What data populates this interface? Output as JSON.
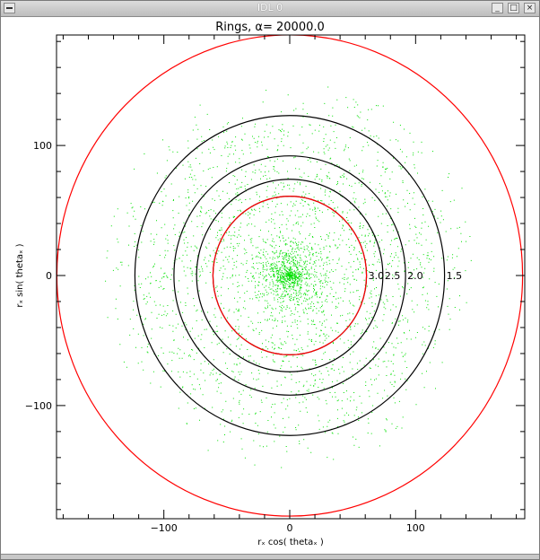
{
  "window": {
    "title": "IDL 0",
    "minimize_glyph": "_",
    "maximize_glyph": "□",
    "close_glyph": "×"
  },
  "colors": {
    "red_ring": "#ff0000",
    "black_ring": "#000000",
    "points": "#00e000"
  },
  "icons": {
    "menu": "window-menu-icon",
    "minimize": "minimize-icon",
    "maximize": "maximize-icon",
    "close": "close-icon"
  },
  "chart_data": {
    "type": "scatter",
    "title": "Rings, α=        20000.0",
    "xlabel": "rₓ cos( thetaₓ )",
    "ylabel": "rₓ sin( thetaₓ )",
    "xlim": [
      -186,
      186
    ],
    "ylim": [
      -186,
      186
    ],
    "xticks": [
      {
        "value": -100,
        "label": "−100"
      },
      {
        "value": 0,
        "label": "0"
      },
      {
        "value": 100,
        "label": "100"
      }
    ],
    "yticks": [
      {
        "value": -100,
        "label": "−100"
      },
      {
        "value": 0,
        "label": "0"
      },
      {
        "value": 100,
        "label": "100"
      }
    ],
    "grid": false,
    "rings": [
      {
        "radius": 185,
        "color": "#ff0000",
        "label": ""
      },
      {
        "radius": 123,
        "color": "#000000",
        "label": "1.5"
      },
      {
        "radius": 92,
        "color": "#000000",
        "label": "2.0"
      },
      {
        "radius": 74,
        "color": "#000000",
        "label": "2.5"
      },
      {
        "radius": 61,
        "color": "#000000",
        "label": "3.0"
      },
      {
        "radius": 61,
        "color": "#ff0000",
        "label": ""
      }
    ],
    "point_distribution": {
      "description_of_density": "dense core at origin with annular concentrations near ring radii",
      "approx_point_count": 9000,
      "core_radius": 20,
      "annuli": [
        62,
        74,
        92,
        105,
        123
      ],
      "max_extent": 150
    }
  }
}
